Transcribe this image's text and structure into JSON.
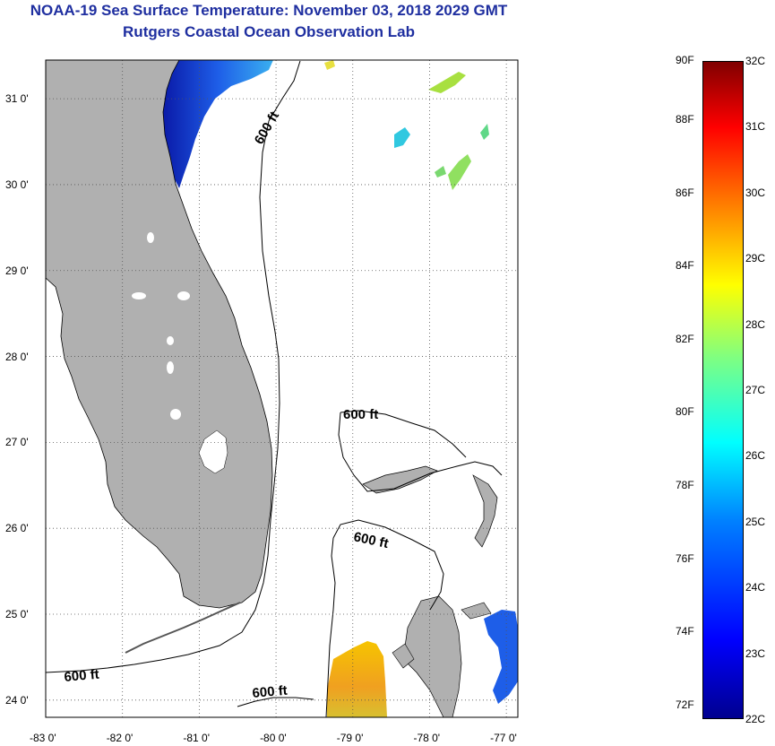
{
  "title": "NOAA-19 Sea Surface Temperature:  November 03, 2018 2029 GMT",
  "subtitle": "Rutgers Coastal Ocean Observation Lab",
  "map": {
    "lon_range": [
      -83,
      -76.85
    ],
    "lat_range": [
      23.8,
      31.45
    ],
    "lon_ticks": [
      {
        "value": -83,
        "label": "-83 0'"
      },
      {
        "value": -82,
        "label": "-82 0'"
      },
      {
        "value": -81,
        "label": "-81 0'"
      },
      {
        "value": -80,
        "label": "-80 0'"
      },
      {
        "value": -79,
        "label": "-79 0'"
      },
      {
        "value": -78,
        "label": "-78 0'"
      },
      {
        "value": -77,
        "label": "-77 0'"
      }
    ],
    "lat_ticks": [
      {
        "value": 31,
        "label": "31 0'"
      },
      {
        "value": 30,
        "label": "30 0'"
      },
      {
        "value": 29,
        "label": "29 0'"
      },
      {
        "value": 28,
        "label": "28 0'"
      },
      {
        "value": 27,
        "label": "27 0'"
      },
      {
        "value": 26,
        "label": "26 0'"
      },
      {
        "value": 25,
        "label": "25 0'"
      },
      {
        "value": 24,
        "label": "24 0'"
      }
    ],
    "contour_labels": [
      "600 ft",
      "600 ft",
      "600 ft",
      "600 ft",
      "600 ft"
    ],
    "land_color": "#b0b0b0",
    "grid": true
  },
  "colorbar": {
    "min_c": 22,
    "max_c": 32,
    "fahrenheit_labels": [
      "90F",
      "88F",
      "86F",
      "84F",
      "82F",
      "80F",
      "78F",
      "76F",
      "74F",
      "72F"
    ],
    "celsius_labels": [
      "32C",
      "31C",
      "30C",
      "29C",
      "28C",
      "27C",
      "26C",
      "25C",
      "24C",
      "23C",
      "22C"
    ]
  }
}
